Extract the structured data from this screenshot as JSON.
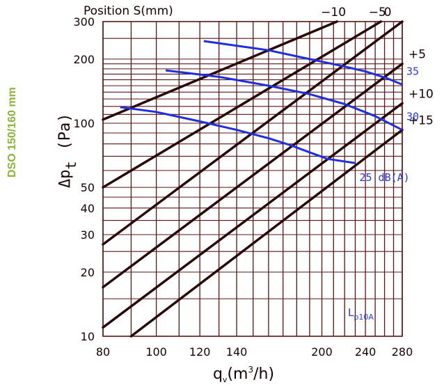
{
  "side_title": "DSO 150/160 mm",
  "colors": {
    "side_title": "#8ab43a",
    "grid": "#5a1414",
    "position_lines": "#2a0808",
    "noise_lines": "#1f2fe0",
    "noise_text": "#2a3ae0",
    "axis_text": "#1a0000"
  },
  "chart_data": {
    "type": "line",
    "x_scale": "log",
    "y_scale": "log",
    "xlabel_parts": [
      "q",
      "v",
      "(m",
      "3",
      "/h)"
    ],
    "ylabel_parts": [
      "Δp",
      "t",
      "(Pa)"
    ],
    "top_axis_label": "Position S(mm)",
    "xlim": [
      80,
      280
    ],
    "ylim": [
      10,
      300
    ],
    "x_ticks": [
      80,
      100,
      120,
      140,
      200,
      240,
      280
    ],
    "y_ticks": [
      10,
      20,
      30,
      40,
      50,
      100,
      200,
      300
    ],
    "x_grid": [
      80,
      90,
      100,
      110,
      120,
      130,
      140,
      150,
      160,
      170,
      180,
      190,
      200,
      210,
      220,
      230,
      240,
      250,
      260,
      270,
      280
    ],
    "y_grid": [
      10,
      15,
      20,
      25,
      30,
      35,
      40,
      45,
      50,
      60,
      70,
      80,
      90,
      100,
      110,
      120,
      130,
      140,
      150,
      160,
      170,
      180,
      190,
      200,
      250,
      300
    ],
    "position_series": [
      {
        "name": "-10",
        "label": "−10",
        "label_at": "top",
        "x": [
          80,
          213
        ],
        "y": [
          104,
          300
        ]
      },
      {
        "name": "-5",
        "label": "−5",
        "label_at": "top",
        "x": [
          80,
          256
        ],
        "y": [
          50,
          300
        ]
      },
      {
        "name": "0",
        "label": "0",
        "label_at": "top",
        "x": [
          80,
          280
        ],
        "y": [
          27,
          300
        ]
      },
      {
        "name": "+5",
        "label": "+5",
        "label_at": "right",
        "x": [
          80,
          280
        ],
        "y": [
          17,
          190
        ]
      },
      {
        "name": "+10",
        "label": "+10",
        "label_at": "right",
        "x": [
          80,
          280
        ],
        "y": [
          11,
          124
        ]
      },
      {
        "name": "+15",
        "label": "+15",
        "label_at": "right",
        "x": [
          90,
          280
        ],
        "y": [
          10,
          93
        ]
      }
    ],
    "noise_series": [
      {
        "name": "35",
        "label": "35",
        "x": [
          122,
          160,
          190,
          215,
          240,
          262,
          280
        ],
        "y": [
          243,
          220,
          200,
          187,
          175,
          163,
          152
        ]
      },
      {
        "name": "30",
        "label": "30",
        "x": [
          104,
          130,
          160,
          190,
          220,
          250,
          280
        ],
        "y": [
          177,
          165,
          150,
          137,
          123,
          108,
          93
        ]
      },
      {
        "name": "25",
        "label": "25",
        "x": [
          86,
          100,
          120,
          140,
          160,
          175,
          190,
          205,
          230
        ],
        "y": [
          119,
          113,
          102,
          93,
          85,
          79,
          73,
          68,
          65
        ]
      }
    ],
    "noise_unit": "dB(A)",
    "annotation": {
      "main": "L",
      "sub": "p10A"
    }
  }
}
